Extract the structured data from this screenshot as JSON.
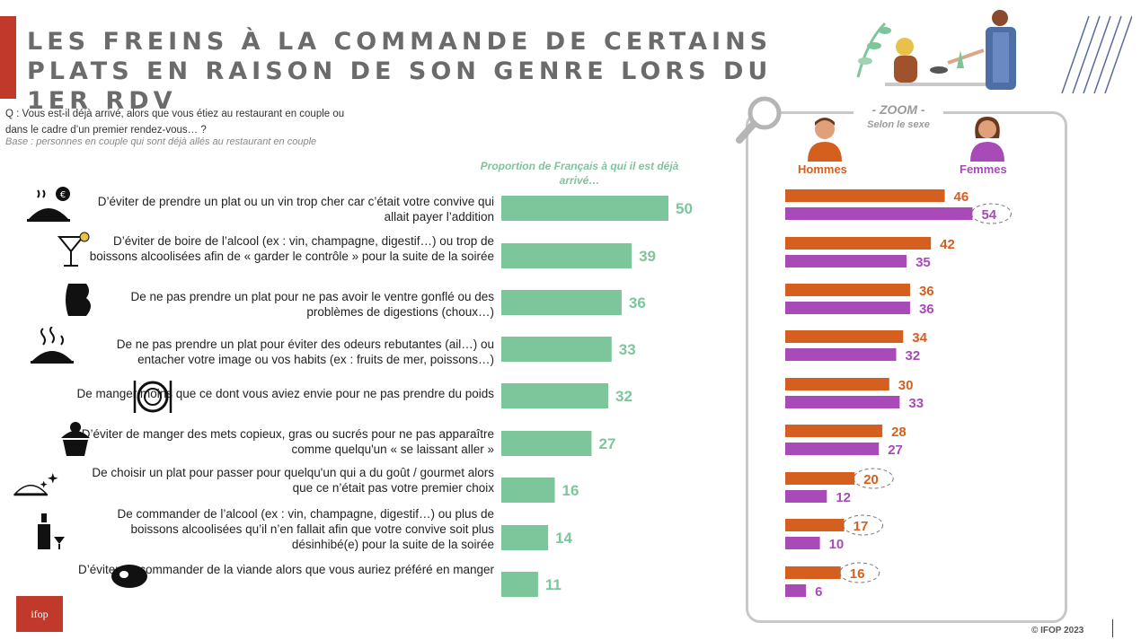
{
  "title": "LES FREINS À LA COMMANDE DE CERTAINS PLATS EN RAISON DE SON GENRE LORS DU 1ER RDV",
  "question": "Q : Vous est-il déjà arrivé, alors que vous étiez au restaurant en couple ou dans le cadre d’un premier rendez-vous… ?",
  "base": "Base : personnes en couple qui sont déjà allés au restaurant en couple",
  "proportion_title": "Proportion de Français à qui il est déjà arrivé…",
  "zoom": {
    "title": "- ZOOM -",
    "subtitle": "Selon le sexe",
    "men_label": "Hommes",
    "women_label": "Femmes"
  },
  "logo_text": "ifop",
  "copyright": "© IFOP 2023",
  "colors": {
    "accent": "#c0392b",
    "total_bar": "#7dc59b",
    "men": "#d45f1e",
    "women": "#a84ab8",
    "frame": "#c8c8c8"
  },
  "row_icons": [
    "cloche-euro-icon",
    "cocktail-icon",
    "belly-icon",
    "smelly-dish-icon",
    "plate-cutlery-icon",
    "cupcake-icon",
    "sparkling-cloche-icon",
    "wine-bottle-icon",
    "steak-icon"
  ],
  "chart_data": [
    {
      "type": "bar",
      "orientation": "horizontal",
      "title": "Proportion de Français à qui il est déjà arrivé…",
      "categories": [
        "D’éviter de prendre un plat ou un vin trop cher car c’était votre convive qui allait payer l’addition",
        "D’éviter de boire de l’alcool (ex : vin, champagne, digestif…) ou trop de boissons alcoolisées afin de « garder le contrôle » pour la suite de la soirée",
        "De ne pas prendre un plat pour ne pas avoir le ventre gonflé ou des problèmes de digestions (choux…)",
        "De ne pas prendre un plat pour éviter des odeurs rebutantes (ail…) ou entacher votre image ou vos habits (ex : fruits de mer, poissons…)",
        "De manger moins que ce dont vous aviez envie pour ne pas prendre du poids",
        "D’éviter de manger des mets copieux, gras ou sucrés pour ne pas apparaître comme quelqu'un « se laissant aller »",
        "De choisir un plat pour passer pour quelqu'un qui a du goût / gourmet alors que ce n’était pas votre premier choix",
        "De commander de l’alcool (ex : vin, champagne, digestif…) ou plus de boissons alcoolisées qu’il n’en fallait afin que votre convive soit plus désinhibé(e) pour la suite de la soirée",
        "D’éviter de commander de la viande alors que vous auriez préféré en manger"
      ],
      "values": [
        50,
        39,
        36,
        33,
        32,
        27,
        16,
        14,
        11
      ],
      "xlim": [
        0,
        100
      ]
    },
    {
      "type": "bar",
      "orientation": "horizontal",
      "title": "- ZOOM -",
      "subtitle": "Selon le sexe",
      "series": [
        {
          "name": "Hommes",
          "values": [
            46,
            42,
            36,
            34,
            30,
            28,
            20,
            17,
            16
          ]
        },
        {
          "name": "Femmes",
          "values": [
            54,
            35,
            36,
            32,
            33,
            27,
            12,
            10,
            6
          ]
        }
      ],
      "highlighted": {
        "Hommes": [
          6,
          7,
          8
        ],
        "Femmes": [
          0
        ]
      },
      "xlim": [
        0,
        100
      ]
    }
  ]
}
